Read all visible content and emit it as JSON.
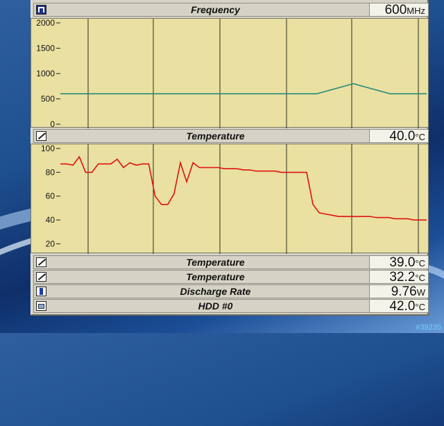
{
  "meters": [
    {
      "title": "Frequency",
      "value": "600",
      "unit": "MHz",
      "icon": "frequency-icon"
    },
    {
      "title": "Temperature",
      "value": "40.0",
      "unit": "°C",
      "icon": "temperature-icon"
    },
    {
      "title": "Temperature",
      "value": "39.0",
      "unit": "°C",
      "icon": "temperature-icon"
    },
    {
      "title": "Temperature",
      "value": "32.2",
      "unit": "°C",
      "icon": "temperature-icon"
    },
    {
      "title": "Discharge Rate",
      "value": "9.76",
      "unit": "W",
      "icon": "battery-icon"
    },
    {
      "title": "HDD #0",
      "value": "42.0",
      "unit": "°C",
      "icon": "hdd-icon"
    }
  ],
  "frequency_graph": {
    "yticks": [
      "2000",
      "1500",
      "1000",
      "500",
      "0"
    ],
    "line_color": "#2a8a78"
  },
  "temperature_graph": {
    "yticks": [
      "100",
      "80",
      "60",
      "40",
      "20"
    ],
    "line_color": "#e01010"
  },
  "chart_data": [
    {
      "type": "line",
      "title": "Frequency",
      "ylim": [
        0,
        2000
      ],
      "ticks": [
        0,
        500,
        1000,
        1500,
        2000
      ],
      "series": [
        {
          "values": [
            600,
            600,
            600,
            600,
            600,
            600,
            600,
            600,
            800,
            600,
            600
          ]
        }
      ]
    },
    {
      "type": "line",
      "title": "Temperature",
      "ylim": [
        15,
        100
      ],
      "ticks": [
        20,
        40,
        60,
        80,
        100
      ],
      "series": [
        {
          "values": [
            87,
            87,
            86,
            93,
            80,
            80,
            87,
            87,
            87,
            91,
            84,
            88,
            86,
            87,
            87,
            60,
            53,
            53,
            62,
            88,
            72,
            88,
            84,
            84,
            84,
            84,
            83,
            83,
            83,
            82,
            82,
            81,
            81,
            81,
            81,
            80,
            80,
            80,
            80,
            80,
            53,
            46,
            45,
            44,
            43,
            43,
            43,
            43,
            43,
            43,
            42,
            42,
            42,
            41,
            41,
            41,
            40,
            40,
            40
          ]
        }
      ]
    }
  ],
  "badge": "#39235"
}
